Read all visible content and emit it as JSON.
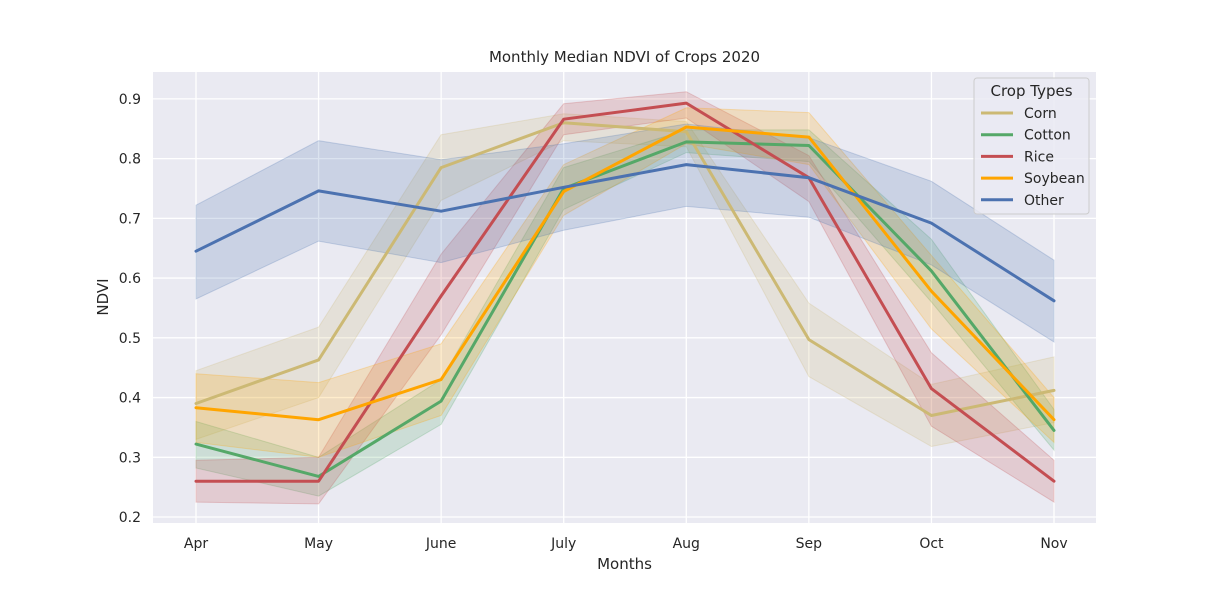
{
  "chart_data": {
    "type": "line",
    "title": "Monthly Median NDVI of Crops 2020",
    "xlabel": "Months",
    "ylabel": "NDVI",
    "categories": [
      "Apr",
      "May",
      "June",
      "July",
      "Aug",
      "Sep",
      "Oct",
      "Nov"
    ],
    "ylim": [
      0.19,
      0.945
    ],
    "yticks": [
      0.2,
      0.3,
      0.4,
      0.5,
      0.6,
      0.7,
      0.8,
      0.9
    ],
    "grid": true,
    "legend": {
      "title": "Crop Types",
      "position": "top-right"
    },
    "series": [
      {
        "name": "Corn",
        "color": "#ccb974",
        "values": [
          0.39,
          0.463,
          0.785,
          0.86,
          0.845,
          0.497,
          0.37,
          0.412
        ],
        "lower": [
          0.33,
          0.4,
          0.73,
          0.83,
          0.82,
          0.435,
          0.318,
          0.358
        ],
        "upper": [
          0.445,
          0.518,
          0.84,
          0.875,
          0.862,
          0.558,
          0.422,
          0.468
        ]
      },
      {
        "name": "Cotton",
        "color": "#55a868",
        "values": [
          0.322,
          0.268,
          0.394,
          0.75,
          0.828,
          0.822,
          0.612,
          0.345
        ],
        "lower": [
          0.282,
          0.235,
          0.355,
          0.715,
          0.81,
          0.795,
          0.56,
          0.312
        ],
        "upper": [
          0.36,
          0.3,
          0.43,
          0.785,
          0.848,
          0.848,
          0.665,
          0.38
        ]
      },
      {
        "name": "Rice",
        "color": "#c44e52",
        "values": [
          0.26,
          0.26,
          0.57,
          0.866,
          0.893,
          0.768,
          0.415,
          0.26
        ],
        "lower": [
          0.225,
          0.222,
          0.505,
          0.84,
          0.868,
          0.728,
          0.352,
          0.225
        ],
        "upper": [
          0.295,
          0.3,
          0.64,
          0.892,
          0.912,
          0.805,
          0.475,
          0.295
        ]
      },
      {
        "name": "Soybean",
        "color": "#ffa500",
        "values": [
          0.383,
          0.363,
          0.43,
          0.745,
          0.853,
          0.836,
          0.578,
          0.363
        ],
        "lower": [
          0.325,
          0.3,
          0.37,
          0.705,
          0.825,
          0.79,
          0.515,
          0.325
        ],
        "upper": [
          0.44,
          0.425,
          0.49,
          0.79,
          0.885,
          0.877,
          0.638,
          0.4
        ]
      },
      {
        "name": "Other",
        "color": "#4c72b0",
        "values": [
          0.645,
          0.746,
          0.712,
          0.752,
          0.79,
          0.768,
          0.692,
          0.562
        ],
        "lower": [
          0.565,
          0.662,
          0.626,
          0.68,
          0.72,
          0.702,
          0.622,
          0.493
        ],
        "upper": [
          0.722,
          0.83,
          0.798,
          0.825,
          0.858,
          0.835,
          0.762,
          0.63
        ]
      }
    ]
  }
}
